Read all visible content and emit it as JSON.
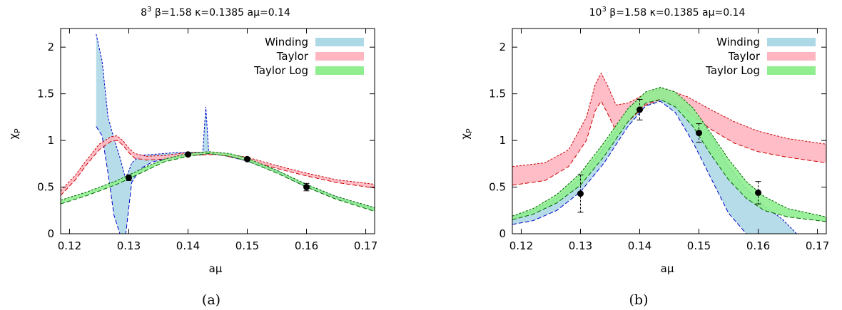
{
  "chart_data": [
    {
      "type": "area",
      "caption": "(a)",
      "title_base": "8",
      "title_exp": "3",
      "title_rest": " β=1.58 κ=0.1385 aμ=0.14",
      "xlabel": "aμ",
      "ylabel_main": "χ",
      "ylabel_sub": "P",
      "xlim": [
        0.1185,
        0.1715
      ],
      "ylim": [
        0,
        2.2
      ],
      "xticks": [
        "0.12",
        "0.13",
        "0.14",
        "0.15",
        "0.16",
        "0.17"
      ],
      "yticks": [
        "0",
        "0.5",
        "1",
        "1.5",
        "2"
      ],
      "grid": false,
      "legend_position": "top-right",
      "series": [
        {
          "name": "Winding",
          "color": "#add8e6",
          "edge_color": "#0000cc",
          "x": [
            0.1185,
            0.1245,
            0.1255,
            0.1265,
            0.1275,
            0.1285,
            0.1295,
            0.1305,
            0.132,
            0.134,
            0.136,
            0.138,
            0.14,
            0.1425,
            0.143,
            0.1435,
            0.1445,
            0.146,
            0.15,
            0.155,
            0.16,
            0.165,
            0.1715
          ],
          "upper": [
            null,
            2.14,
            1.85,
            1.25,
            1.02,
            0.82,
            0.58,
            0.76,
            0.84,
            0.85,
            0.86,
            0.87,
            0.87,
            0.875,
            1.36,
            0.88,
            0.87,
            0.855,
            0.8,
            0.68,
            0.52,
            0.4,
            0.27
          ],
          "lower": [
            null,
            1.15,
            1.05,
            0.65,
            0.2,
            0.0,
            0.0,
            0.55,
            0.7,
            0.77,
            0.8,
            0.82,
            0.84,
            0.845,
            0.85,
            0.85,
            0.85,
            0.84,
            0.78,
            0.66,
            0.5,
            0.38,
            0.25
          ]
        },
        {
          "name": "Taylor",
          "color": "#ffb6c1",
          "edge_color": "#cc0000",
          "x": [
            0.1185,
            0.121,
            0.123,
            0.125,
            0.127,
            0.128,
            0.129,
            0.13,
            0.131,
            0.133,
            0.136,
            0.14,
            0.145,
            0.15,
            0.155,
            0.16,
            0.165,
            0.1715
          ],
          "upper": [
            0.46,
            0.63,
            0.8,
            0.96,
            1.04,
            1.05,
            1.0,
            0.92,
            0.86,
            0.83,
            0.84,
            0.87,
            0.87,
            0.82,
            0.73,
            0.65,
            0.58,
            0.53
          ],
          "lower": [
            0.41,
            0.58,
            0.75,
            0.9,
            0.99,
            1.0,
            0.95,
            0.87,
            0.81,
            0.79,
            0.8,
            0.84,
            0.85,
            0.79,
            0.7,
            0.62,
            0.55,
            0.49
          ]
        },
        {
          "name": "Taylor Log",
          "color": "#90ee90",
          "edge_color": "#006400",
          "x": [
            0.1185,
            0.123,
            0.128,
            0.13,
            0.133,
            0.136,
            0.14,
            0.1435,
            0.147,
            0.15,
            0.155,
            0.16,
            0.165,
            0.1715
          ],
          "upper": [
            0.36,
            0.45,
            0.57,
            0.63,
            0.72,
            0.8,
            0.86,
            0.88,
            0.86,
            0.81,
            0.68,
            0.53,
            0.4,
            0.28
          ],
          "lower": [
            0.32,
            0.41,
            0.53,
            0.59,
            0.68,
            0.77,
            0.83,
            0.86,
            0.83,
            0.78,
            0.65,
            0.5,
            0.37,
            0.24
          ]
        }
      ],
      "points": [
        {
          "x": 0.13,
          "y": 0.6,
          "err": 0.03
        },
        {
          "x": 0.14,
          "y": 0.85,
          "err": 0.01
        },
        {
          "x": 0.15,
          "y": 0.8,
          "err": 0.01
        },
        {
          "x": 0.16,
          "y": 0.5,
          "err": 0.04
        }
      ]
    },
    {
      "type": "area",
      "caption": "(b)",
      "title_base": "10",
      "title_exp": "3",
      "title_rest": " β=1.58 κ=0.1385 aμ=0.14",
      "xlabel": "aμ",
      "ylabel_main": "χ",
      "ylabel_sub": "P",
      "xlim": [
        0.1185,
        0.1715
      ],
      "ylim": [
        0,
        2.2
      ],
      "xticks": [
        "0.12",
        "0.13",
        "0.14",
        "0.15",
        "0.16",
        "0.17"
      ],
      "yticks": [
        "0",
        "0.5",
        "1",
        "1.5",
        "2"
      ],
      "grid": false,
      "legend_position": "top-right",
      "series": [
        {
          "name": "Winding",
          "color": "#add8e6",
          "edge_color": "#0000cc",
          "x": [
            0.1185,
            0.122,
            0.126,
            0.13,
            0.134,
            0.138,
            0.141,
            0.1435,
            0.146,
            0.149,
            0.152,
            0.155,
            0.158,
            0.161,
            0.164,
            0.1665
          ],
          "upper": [
            0.18,
            0.25,
            0.38,
            0.6,
            0.92,
            1.28,
            1.49,
            1.56,
            1.52,
            1.33,
            1.05,
            0.72,
            0.48,
            0.3,
            0.16,
            0.0
          ],
          "lower": [
            0.1,
            0.14,
            0.25,
            0.45,
            0.76,
            1.15,
            1.37,
            1.42,
            1.3,
            0.98,
            0.6,
            0.22,
            0.0,
            0.0,
            0.0,
            0.0
          ]
        },
        {
          "name": "Taylor",
          "color": "#ffb6c1",
          "edge_color": "#cc0000",
          "x": [
            0.1185,
            0.124,
            0.128,
            0.131,
            0.1325,
            0.1335,
            0.1345,
            0.136,
            0.138,
            0.141,
            0.144,
            0.148,
            0.152,
            0.156,
            0.16,
            0.165,
            0.1715
          ],
          "upper": [
            0.72,
            0.76,
            0.9,
            1.25,
            1.6,
            1.72,
            1.6,
            1.38,
            1.4,
            1.5,
            1.56,
            1.47,
            1.33,
            1.2,
            1.1,
            1.02,
            0.96
          ],
          "lower": [
            0.52,
            0.57,
            0.72,
            1.0,
            1.32,
            1.42,
            1.3,
            1.1,
            1.2,
            1.38,
            1.45,
            1.32,
            1.12,
            0.97,
            0.88,
            0.82,
            0.76
          ]
        },
        {
          "name": "Taylor Log",
          "color": "#90ee90",
          "edge_color": "#006400",
          "x": [
            0.1185,
            0.122,
            0.126,
            0.13,
            0.134,
            0.138,
            0.141,
            0.1435,
            0.146,
            0.149,
            0.152,
            0.155,
            0.158,
            0.161,
            0.165,
            0.1715
          ],
          "upper": [
            0.19,
            0.27,
            0.42,
            0.65,
            0.98,
            1.34,
            1.52,
            1.57,
            1.52,
            1.35,
            1.08,
            0.8,
            0.56,
            0.4,
            0.27,
            0.18
          ],
          "lower": [
            0.15,
            0.21,
            0.33,
            0.52,
            0.83,
            1.2,
            1.4,
            1.44,
            1.36,
            1.15,
            0.85,
            0.58,
            0.38,
            0.25,
            0.18,
            0.13
          ]
        }
      ],
      "points": [
        {
          "x": 0.13,
          "y": 0.43,
          "err": 0.2
        },
        {
          "x": 0.14,
          "y": 1.33,
          "err": 0.11
        },
        {
          "x": 0.15,
          "y": 1.08,
          "err": 0.1
        },
        {
          "x": 0.16,
          "y": 0.44,
          "err": 0.12
        }
      ]
    }
  ]
}
